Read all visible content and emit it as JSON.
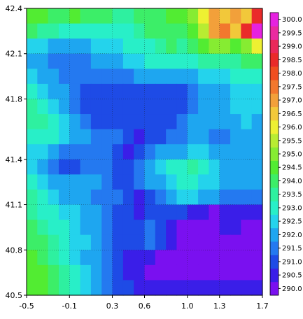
{
  "chart_data": {
    "type": "heatmap",
    "title": "",
    "xlabel": "",
    "ylabel": "",
    "xlim": [
      -0.5,
      1.7
    ],
    "ylim": [
      40.5,
      42.4
    ],
    "x_ticks": [
      -0.5,
      -0.1,
      0.3,
      0.6,
      1.0,
      1.3,
      1.7
    ],
    "x_tick_labels": [
      "-0.5",
      "-0.1",
      "0.3",
      "0.6",
      "1.0",
      "1.3",
      "1.7"
    ],
    "y_ticks": [
      40.5,
      40.8,
      41.1,
      41.4,
      41.8,
      42.1,
      42.4
    ],
    "y_tick_labels": [
      "40.5",
      "40.8",
      "41.1",
      "41.4",
      "41.8",
      "42.1",
      "42.4"
    ],
    "grid": true,
    "colorbar": {
      "placement": "right",
      "levels": [
        290.0,
        290.5,
        291.0,
        291.5,
        292.0,
        292.5,
        293.0,
        293.5,
        294.0,
        294.5,
        295.0,
        295.5,
        296.0,
        296.5,
        297.0,
        297.5,
        298.0,
        298.5,
        299.0,
        299.5,
        300.0
      ],
      "labels": [
        "290.0",
        "290.5",
        "291.0",
        "291.5",
        "292.0",
        "292.5",
        "293.0",
        "293.5",
        "294.0",
        "294.5",
        "295.0",
        "295.5",
        "296.0",
        "296.5",
        "297.0",
        "297.5",
        "298.0",
        "298.5",
        "299.0",
        "299.5",
        "300.0"
      ],
      "colors": [
        "#7a10f0",
        "#3a1ee8",
        "#1e4be6",
        "#2479f0",
        "#1ea6f0",
        "#24d3ec",
        "#28efc8",
        "#2ef0a0",
        "#3cee68",
        "#52ec32",
        "#86ec32",
        "#b8ec32",
        "#eef032",
        "#f2c83a",
        "#f2a03a",
        "#f2782e",
        "#f04e20",
        "#ea2a2a",
        "#ea285a",
        "#ea2aa0",
        "#e622e0"
      ]
    },
    "grid_resolution": 0.1,
    "x": [
      -0.45,
      -0.35,
      -0.25,
      -0.15,
      -0.05,
      0.05,
      0.15,
      0.25,
      0.35,
      0.45,
      0.55,
      0.65,
      0.75,
      0.85,
      0.95,
      1.05,
      1.15,
      1.25,
      1.35,
      1.45,
      1.55,
      1.65
    ],
    "y": [
      42.35,
      42.25,
      42.15,
      42.05,
      41.95,
      41.85,
      41.75,
      41.65,
      41.55,
      41.45,
      41.35,
      41.25,
      41.15,
      41.05,
      40.95,
      40.85,
      40.75,
      40.65,
      40.55
    ],
    "z": [
      [
        294.5,
        294.5,
        294.0,
        294.0,
        294.5,
        294.0,
        294.0,
        294.0,
        293.5,
        293.5,
        294.0,
        294.0,
        294.0,
        294.5,
        294.5,
        295.0,
        296.0,
        297.0,
        296.5,
        297.0,
        296.5,
        298.5
      ],
      [
        294.0,
        293.5,
        293.5,
        293.0,
        293.0,
        293.0,
        293.0,
        293.0,
        293.0,
        293.0,
        293.5,
        294.0,
        294.0,
        294.0,
        294.0,
        294.5,
        295.5,
        297.0,
        297.5,
        296.5,
        298.5,
        300.0
      ],
      [
        292.5,
        292.5,
        292.0,
        292.0,
        292.0,
        292.0,
        292.5,
        292.5,
        292.5,
        293.0,
        293.0,
        293.0,
        293.5,
        294.0,
        293.5,
        294.0,
        294.5,
        295.0,
        295.0,
        294.5,
        295.0,
        296.0
      ],
      [
        292.0,
        292.0,
        291.5,
        291.5,
        291.5,
        291.5,
        292.0,
        292.0,
        292.0,
        292.5,
        292.5,
        293.0,
        293.0,
        293.0,
        293.0,
        293.0,
        293.5,
        293.5,
        293.5,
        293.5,
        294.0,
        294.0
      ],
      [
        292.5,
        292.0,
        292.0,
        291.5,
        291.5,
        291.5,
        291.5,
        291.5,
        291.5,
        291.5,
        292.0,
        292.0,
        292.0,
        292.0,
        292.0,
        292.0,
        292.5,
        292.5,
        292.5,
        293.0,
        293.0,
        293.0
      ],
      [
        293.0,
        292.5,
        292.0,
        292.0,
        291.5,
        291.0,
        291.0,
        291.0,
        291.0,
        291.0,
        291.0,
        291.0,
        291.0,
        291.0,
        291.0,
        291.5,
        292.0,
        292.0,
        292.0,
        292.5,
        292.5,
        292.5
      ],
      [
        293.5,
        293.0,
        292.5,
        292.0,
        291.5,
        291.0,
        291.0,
        291.0,
        291.0,
        291.0,
        291.0,
        291.0,
        291.0,
        291.0,
        291.0,
        291.5,
        292.0,
        292.0,
        292.0,
        292.5,
        292.5,
        292.5
      ],
      [
        293.5,
        293.5,
        293.0,
        292.5,
        292.0,
        291.5,
        291.0,
        291.0,
        291.0,
        291.0,
        291.0,
        291.0,
        291.0,
        291.0,
        291.5,
        292.0,
        292.0,
        292.0,
        292.0,
        292.0,
        292.5,
        292.0
      ],
      [
        293.0,
        293.0,
        293.0,
        292.5,
        292.0,
        292.0,
        291.5,
        291.5,
        291.5,
        291.0,
        290.5,
        291.0,
        291.0,
        291.5,
        291.5,
        292.0,
        292.0,
        291.5,
        291.5,
        292.0,
        292.0,
        292.0
      ],
      [
        292.5,
        292.5,
        292.0,
        291.5,
        291.5,
        291.5,
        291.5,
        291.5,
        291.0,
        290.5,
        291.0,
        291.5,
        292.0,
        292.0,
        292.0,
        292.5,
        292.5,
        292.0,
        292.0,
        292.0,
        292.0,
        292.0
      ],
      [
        292.5,
        292.0,
        291.5,
        291.0,
        291.0,
        291.5,
        291.5,
        291.5,
        291.0,
        291.0,
        291.5,
        292.0,
        292.5,
        293.0,
        293.0,
        293.5,
        293.0,
        292.5,
        292.0,
        292.0,
        292.0,
        292.0
      ],
      [
        293.0,
        292.5,
        292.0,
        292.0,
        292.0,
        292.0,
        292.0,
        291.5,
        291.0,
        291.0,
        291.5,
        292.0,
        292.0,
        292.5,
        293.0,
        293.0,
        292.5,
        292.5,
        292.0,
        292.0,
        292.0,
        292.0
      ],
      [
        293.5,
        293.0,
        292.5,
        292.0,
        292.0,
        292.0,
        291.5,
        291.5,
        291.5,
        291.0,
        290.5,
        291.0,
        291.5,
        292.0,
        292.5,
        292.5,
        292.0,
        292.0,
        291.5,
        291.5,
        291.5,
        291.5
      ],
      [
        293.5,
        293.0,
        293.0,
        292.5,
        292.5,
        292.0,
        292.0,
        291.5,
        291.0,
        291.0,
        290.5,
        291.0,
        291.0,
        291.0,
        291.0,
        290.5,
        290.5,
        290.0,
        290.5,
        290.5,
        290.5,
        290.5
      ],
      [
        294.0,
        293.5,
        293.0,
        293.0,
        292.5,
        292.0,
        292.0,
        291.5,
        291.0,
        291.0,
        291.0,
        291.5,
        291.0,
        290.5,
        290.0,
        290.0,
        290.0,
        290.0,
        290.5,
        290.5,
        290.0,
        290.0
      ],
      [
        294.0,
        294.0,
        293.5,
        293.0,
        292.5,
        292.5,
        292.0,
        291.5,
        291.0,
        291.0,
        291.0,
        291.5,
        291.0,
        290.5,
        290.0,
        290.0,
        290.0,
        290.0,
        290.0,
        290.0,
        290.0,
        290.0
      ],
      [
        294.5,
        294.0,
        293.5,
        293.0,
        292.5,
        292.0,
        292.0,
        291.5,
        291.0,
        290.5,
        290.5,
        290.5,
        290.0,
        290.0,
        290.0,
        290.0,
        290.0,
        290.0,
        290.0,
        290.0,
        290.0,
        290.0
      ],
      [
        294.5,
        294.5,
        294.0,
        293.5,
        293.0,
        292.5,
        292.0,
        291.5,
        291.0,
        290.5,
        290.5,
        290.0,
        290.0,
        290.0,
        290.0,
        290.0,
        290.0,
        290.0,
        290.0,
        290.0,
        290.0,
        290.0
      ],
      [
        294.5,
        294.5,
        294.0,
        293.5,
        293.0,
        292.5,
        292.0,
        291.5,
        291.0,
        291.0,
        290.5,
        290.5,
        290.5,
        290.5,
        290.5,
        290.5,
        290.5,
        290.5,
        290.5,
        290.5,
        290.5,
        290.5
      ]
    ]
  }
}
